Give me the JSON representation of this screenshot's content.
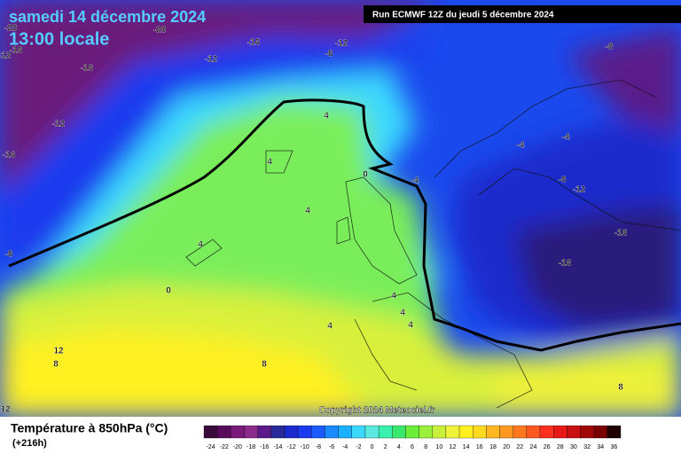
{
  "header": {
    "title": "samedi 14 décembre 2024",
    "subtitle": "13:00 locale",
    "run": "Run ECMWF 12Z du jeudi 5 décembre 2024"
  },
  "map": {
    "contour_labels": [
      -20,
      -20,
      -16,
      -12,
      -16,
      -12,
      -8,
      -12,
      -16,
      -8,
      -12,
      -16,
      -8,
      4,
      4,
      4,
      4,
      0,
      0,
      -4,
      -4,
      -4,
      -8,
      -12,
      -16,
      -16,
      4,
      4,
      4,
      4,
      12,
      8,
      8,
      8,
      12
    ],
    "copyright": "Copyright 2024 Meteociel.fr"
  },
  "footer": {
    "label": "Température à 850hPa (°C)",
    "lead": "(+216h)"
  },
  "scale": {
    "values": [
      -24,
      -22,
      -20,
      -18,
      -16,
      -14,
      -12,
      -10,
      -8,
      -6,
      -4,
      -2,
      0,
      2,
      4,
      6,
      8,
      10,
      12,
      14,
      16,
      18,
      20,
      22,
      24,
      26,
      28,
      30,
      32,
      34,
      36
    ],
    "colors": [
      "#3a0a3a",
      "#5a0a5a",
      "#7a1a7a",
      "#8a2a8a",
      "#5a1a8a",
      "#2a2a9a",
      "#1a2acc",
      "#1a3aee",
      "#1a5aff",
      "#1a8aff",
      "#1ab0ff",
      "#3ad8ff",
      "#5ae8e0",
      "#3af0b0",
      "#3ae870",
      "#6aee3a",
      "#9af03a",
      "#c8f03a",
      "#eef03a",
      "#fff020",
      "#ffd820",
      "#ffb820",
      "#ff9820",
      "#ff7820",
      "#ff5820",
      "#ff3020",
      "#e81818",
      "#c81010",
      "#a00808",
      "#780000",
      "#200000"
    ]
  }
}
